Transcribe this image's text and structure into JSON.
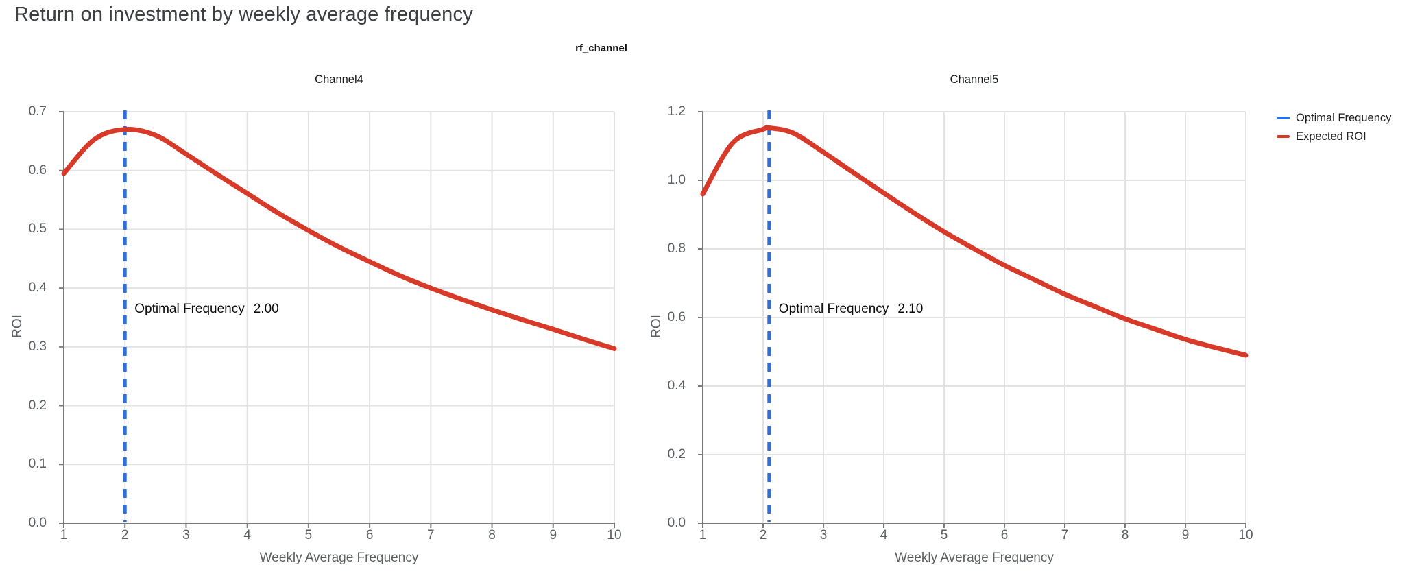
{
  "page": {
    "title": "Return on investment by weekly average frequency"
  },
  "figure": {
    "suptitle": "rf_channel",
    "legend": {
      "items": [
        {
          "label": "Optimal Frequency",
          "color": "#2e6fdc"
        },
        {
          "label": "Expected ROI",
          "color": "#d83a2a"
        }
      ]
    },
    "colors": {
      "optimal_frequency_line": "#2e6fdc",
      "expected_roi_line": "#d83a2a",
      "gridline": "#e3e3e3",
      "axis_line": "#7b7b7b",
      "tick_label": "#5a5f64",
      "page_title": "#3c4043"
    }
  },
  "chart_data": [
    {
      "type": "line",
      "title": "Channel4",
      "xlabel": "Weekly Average Frequency",
      "ylabel": "ROI",
      "xlim": [
        1,
        10
      ],
      "ylim": [
        0,
        0.7
      ],
      "grid": true,
      "xticks": [
        "1",
        "2",
        "3",
        "4",
        "5",
        "6",
        "7",
        "8",
        "9",
        "10"
      ],
      "yticks": [
        "0.0",
        "0.1",
        "0.2",
        "0.3",
        "0.4",
        "0.5",
        "0.6",
        "0.7"
      ],
      "series": [
        {
          "name": "Expected ROI",
          "x": [
            1,
            1.5,
            2,
            2.5,
            3,
            3.5,
            4,
            4.5,
            5,
            5.5,
            6,
            6.5,
            7,
            7.5,
            8,
            8.5,
            9,
            9.5,
            10
          ],
          "y": [
            0.595,
            0.653,
            0.67,
            0.66,
            0.628,
            0.594,
            0.561,
            0.528,
            0.498,
            0.47,
            0.445,
            0.421,
            0.4,
            0.381,
            0.363,
            0.346,
            0.33,
            0.313,
            0.297
          ]
        }
      ],
      "optimal_frequency": {
        "x": 2.0,
        "label": "Optimal Frequency",
        "value": "2.00"
      }
    },
    {
      "type": "line",
      "title": "Channel5",
      "xlabel": "Weekly Average Frequency",
      "ylabel": "ROI",
      "xlim": [
        1,
        10
      ],
      "ylim": [
        0,
        1.2
      ],
      "grid": true,
      "xticks": [
        "1",
        "2",
        "3",
        "4",
        "5",
        "6",
        "7",
        "8",
        "9",
        "10"
      ],
      "yticks": [
        "0.0",
        "0.2",
        "0.4",
        "0.6",
        "0.8",
        "1.0",
        "1.2"
      ],
      "series": [
        {
          "name": "Expected ROI",
          "x": [
            1,
            1.5,
            2,
            2.1,
            2.5,
            3,
            3.5,
            4,
            4.5,
            5,
            5.5,
            6,
            6.5,
            7,
            7.5,
            8,
            8.5,
            9,
            9.5,
            10
          ],
          "y": [
            0.96,
            1.11,
            1.149,
            1.153,
            1.138,
            1.082,
            1.022,
            0.963,
            0.905,
            0.85,
            0.8,
            0.752,
            0.71,
            0.668,
            0.632,
            0.596,
            0.566,
            0.536,
            0.512,
            0.49
          ]
        }
      ],
      "optimal_frequency": {
        "x": 2.1,
        "label": "Optimal Frequency",
        "value": "2.10"
      }
    }
  ]
}
